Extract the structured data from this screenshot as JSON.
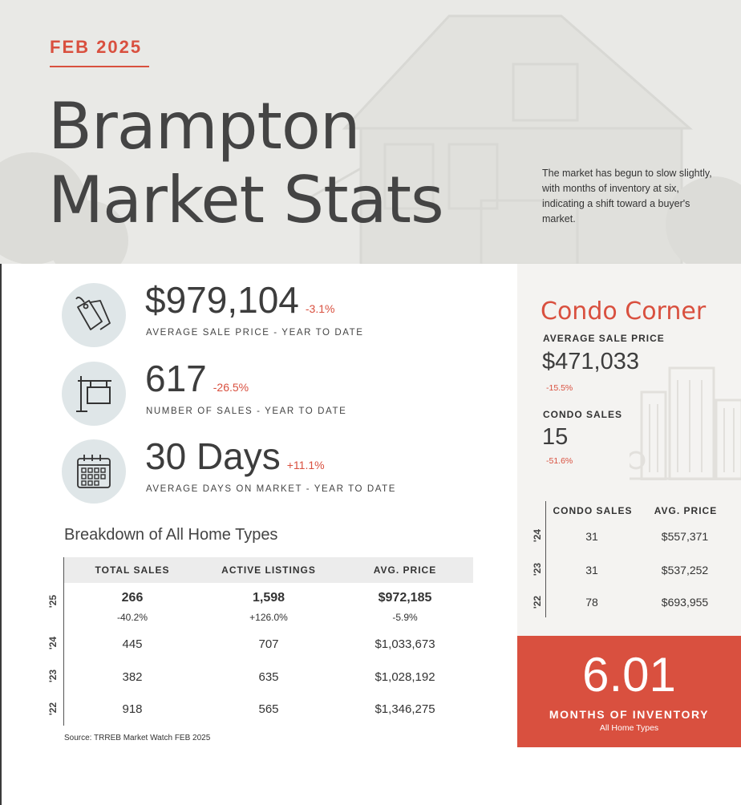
{
  "header": {
    "month": "FEB 2025",
    "title_line1": "Brampton",
    "title_line2": "Market Stats",
    "intro": "The market has begun to slow slightly, with months of inventory at six, indicating a shift toward a buyer's market."
  },
  "stats": [
    {
      "value": "$979,104",
      "change": "-3.1%",
      "label": "AVERAGE SALE PRICE - YEAR TO DATE",
      "icon": "price-tag-icon"
    },
    {
      "value": "617",
      "change": "-26.5%",
      "label": "NUMBER OF SALES - YEAR TO DATE",
      "icon": "for-sale-sign-icon"
    },
    {
      "value": "30 Days",
      "change": "+11.1%",
      "label": "AVERAGE DAYS ON MARKET - YEAR TO DATE",
      "icon": "calendar-icon"
    }
  ],
  "breakdown": {
    "title": "Breakdown of All Home Types",
    "columns": [
      "TOTAL SALES",
      "ACTIVE LISTINGS",
      "AVG. PRICE"
    ],
    "rows": [
      {
        "year": "'25",
        "values": [
          "266",
          "1,598",
          "$972,185"
        ],
        "changes": [
          "-40.2%",
          "+126.0%",
          "-5.9%"
        ]
      },
      {
        "year": "'24",
        "values": [
          "445",
          "707",
          "$1,033,673"
        ]
      },
      {
        "year": "'23",
        "values": [
          "382",
          "635",
          "$1,028,192"
        ]
      },
      {
        "year": "'22",
        "values": [
          "918",
          "565",
          "$1,346,275"
        ]
      }
    ],
    "source": "Source: TRREB Market Watch FEB 2025"
  },
  "condo": {
    "title": "Condo Corner",
    "avg_label": "AVERAGE SALE PRICE",
    "avg_value": "$471,033",
    "avg_change": "-15.5%",
    "sales_label": "CONDO SALES",
    "sales_value": "15",
    "sales_change": "-51.6%",
    "columns": [
      "CONDO SALES",
      "AVG. PRICE"
    ],
    "rows": [
      {
        "year": "'24",
        "sales": "31",
        "price": "$557,371"
      },
      {
        "year": "'23",
        "sales": "31",
        "price": "$537,252"
      },
      {
        "year": "'22",
        "sales": "78",
        "price": "$693,955"
      }
    ]
  },
  "inventory": {
    "value": "6.01",
    "label": "MONTHS OF INVENTORY",
    "sub": "All Home Types"
  },
  "colors": {
    "accent": "#d9503f",
    "icon_bg": "#dfe6e8",
    "condo_bg": "#f4f3f1"
  }
}
